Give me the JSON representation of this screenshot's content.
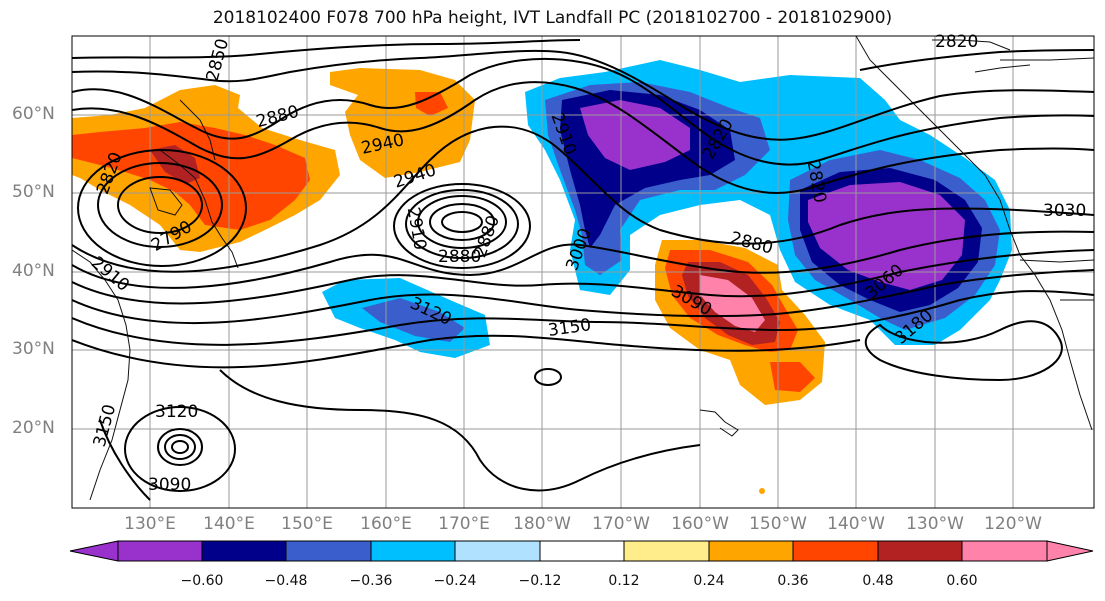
{
  "title": "2018102400 F078 700 hPa height, IVT Landfall PC (2018102700 - 2018102900)",
  "lat_labels": [
    "60°N",
    "50°N",
    "40°N",
    "30°N",
    "20°N"
  ],
  "lon_labels": [
    "130°E",
    "140°E",
    "150°E",
    "160°E",
    "170°E",
    "180°W",
    "170°W",
    "160°W",
    "150°W",
    "140°W",
    "130°W",
    "120°W"
  ],
  "colorbar": {
    "labels": [
      "−0.60",
      "−0.48",
      "−0.36",
      "−0.24",
      "−0.12",
      "0.12",
      "0.24",
      "0.36",
      "0.48",
      "0.60"
    ],
    "colors": [
      "#9932CC",
      "#00008B",
      "#3A5FCD",
      "#00BFFF",
      "#B0E2FF",
      "#FFFFFF",
      "#FFEC8B",
      "#FFA500",
      "#FF4500",
      "#B22222",
      "#FF82AB"
    ]
  },
  "contour_labels": [
    "2820",
    "2850",
    "2880",
    "2940",
    "2940",
    "2820",
    "2790",
    "2910",
    "2910",
    "2880",
    "2880",
    "2820",
    "2910",
    "2880",
    "2820",
    "3000",
    "3030",
    "3060",
    "3090",
    "3090",
    "3120",
    "3120",
    "3150",
    "3150",
    "3180"
  ]
}
